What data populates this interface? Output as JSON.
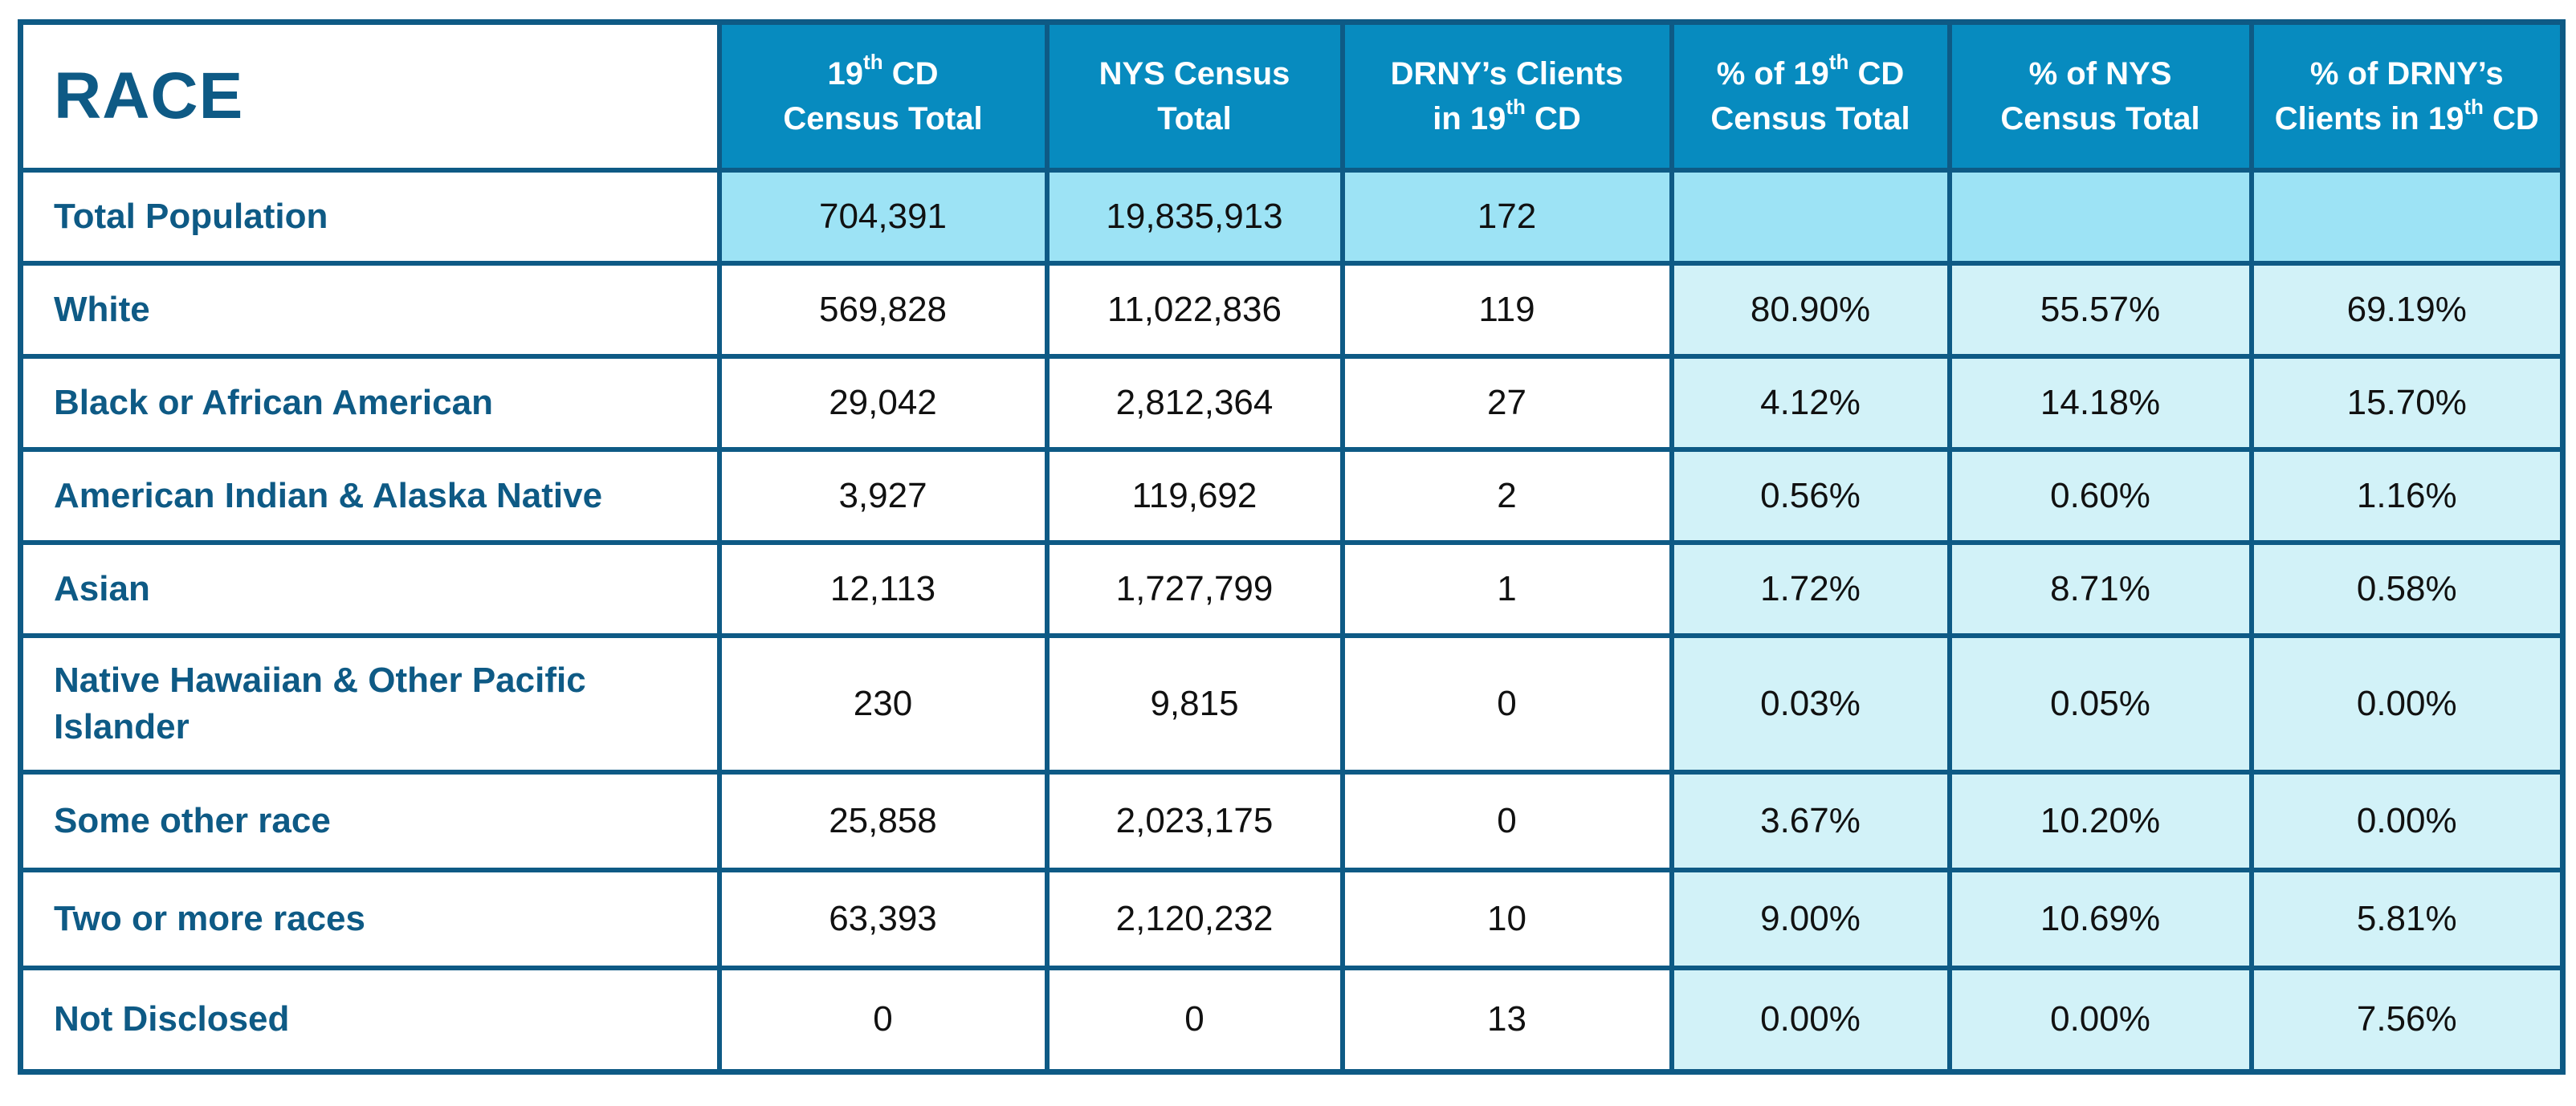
{
  "table": {
    "corner_label": "RACE",
    "headers": {
      "cd_total_pre": "19",
      "cd_total_sup": "th",
      "cd_total_post": " CD",
      "cd_total_line2": "Census Total",
      "nys_total_line1": "NYS Census",
      "nys_total_line2": "Total",
      "drny_line1": "DRNY’s Clients",
      "drny_line2_pre": "in 19",
      "drny_line2_sup": "th",
      "drny_line2_post": " CD",
      "pct_cd_pre": "% of 19",
      "pct_cd_sup": "th",
      "pct_cd_post": " CD",
      "pct_cd_line2": "Census Total",
      "pct_nys_line1": "% of NYS",
      "pct_nys_line2": "Census Total",
      "pct_drny_line1": "% of DRNY’s",
      "pct_drny_line2_pre": "Clients in 19",
      "pct_drny_line2_sup": "th",
      "pct_drny_line2_post": " CD"
    },
    "rows": [
      {
        "label": "Total Population",
        "cd": "704,391",
        "nys": "19,835,913",
        "drny": "172",
        "pct_cd": "",
        "pct_nys": "",
        "pct_drny": ""
      },
      {
        "label": "White",
        "cd": "569,828",
        "nys": "11,022,836",
        "drny": "119",
        "pct_cd": "80.90%",
        "pct_nys": "55.57%",
        "pct_drny": "69.19%"
      },
      {
        "label": "Black or African American",
        "cd": "29,042",
        "nys": "2,812,364",
        "drny": "27",
        "pct_cd": "4.12%",
        "pct_nys": "14.18%",
        "pct_drny": "15.70%"
      },
      {
        "label": "American Indian & Alaska Native",
        "cd": "3,927",
        "nys": "119,692",
        "drny": "2",
        "pct_cd": "0.56%",
        "pct_nys": "0.60%",
        "pct_drny": "1.16%"
      },
      {
        "label": "Asian",
        "cd": "12,113",
        "nys": "1,727,799",
        "drny": "1",
        "pct_cd": "1.72%",
        "pct_nys": "8.71%",
        "pct_drny": "0.58%"
      },
      {
        "label": "Native Hawaiian & Other Pacific Islander",
        "cd": "230",
        "nys": "9,815",
        "drny": "0",
        "pct_cd": "0.03%",
        "pct_nys": "0.05%",
        "pct_drny": "0.00%"
      },
      {
        "label": "Some other race",
        "cd": "25,858",
        "nys": "2,023,175",
        "drny": "0",
        "pct_cd": "3.67%",
        "pct_nys": "10.20%",
        "pct_drny": "0.00%"
      },
      {
        "label": "Two or more races",
        "cd": "63,393",
        "nys": "2,120,232",
        "drny": "10",
        "pct_cd": "9.00%",
        "pct_nys": "10.69%",
        "pct_drny": "5.81%"
      },
      {
        "label": "Not Disclosed",
        "cd": "0",
        "nys": "0",
        "drny": "13",
        "pct_cd": "0.00%",
        "pct_nys": "0.00%",
        "pct_drny": "7.56%"
      }
    ]
  },
  "colors": {
    "border": "#0e5a85",
    "header_bg": "#078bbf",
    "total_row_bg": "#9de3f5",
    "pct_col_bg": "#d2f2f8",
    "label_text": "#0e5a85"
  }
}
